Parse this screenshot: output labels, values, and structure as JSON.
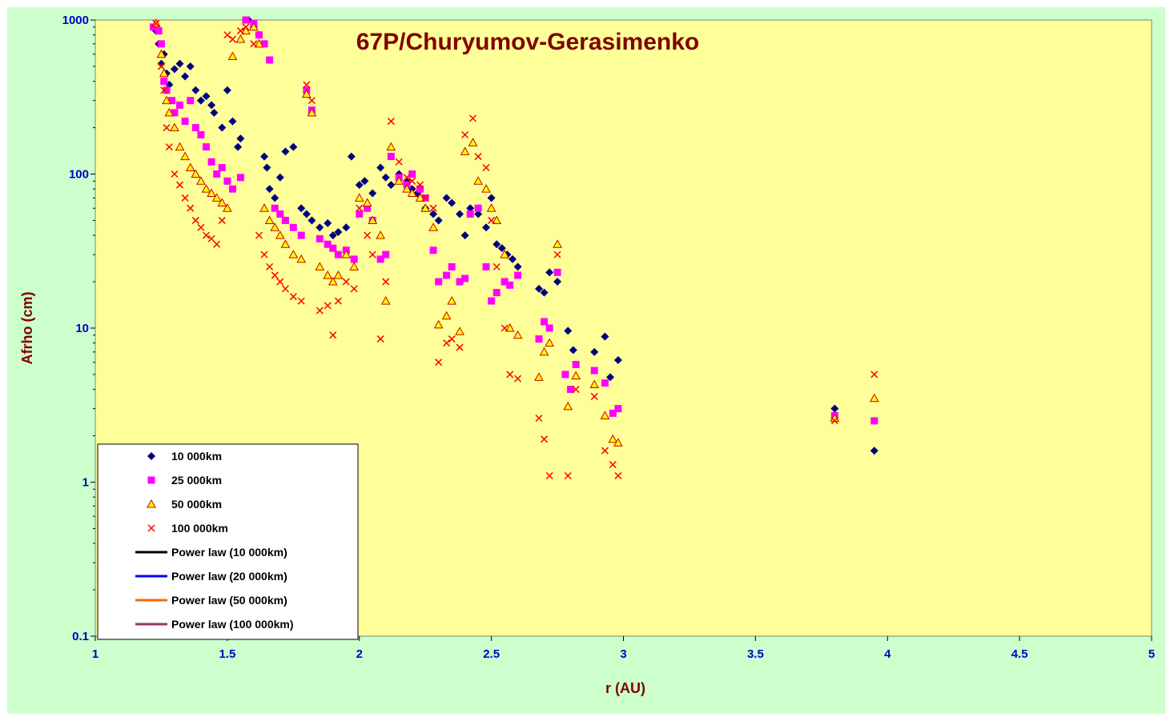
{
  "chart_data": {
    "type": "scatter",
    "title": "67P/Churyumov-Gerasimenko",
    "xlabel": "r (AU)",
    "ylabel": "Afrho (cm)",
    "xlim": [
      1,
      5
    ],
    "ylim": [
      0.1,
      1000
    ],
    "yscale": "log",
    "x_ticks": [
      "1",
      "1.5",
      "2",
      "2.5",
      "3",
      "3.5",
      "4",
      "4.5",
      "5"
    ],
    "y_ticks": [
      "0.1",
      "1",
      "10",
      "100",
      "1000"
    ],
    "grid": false,
    "legend_position": "bottom-left",
    "colors": {
      "plot_background": "#ffff99",
      "chart_background": "#ccffcc",
      "title": "#800000",
      "tick_labels": "#0000cc",
      "axis_labels": "#800000"
    },
    "series": [
      {
        "name": "10 000km",
        "marker": "diamond",
        "color": "#000080",
        "x": [
          1.23,
          1.24,
          1.25,
          1.26,
          1.27,
          1.28,
          1.3,
          1.32,
          1.34,
          1.36,
          1.38,
          1.4,
          1.42,
          1.44,
          1.45,
          1.48,
          1.5,
          1.52,
          1.54,
          1.55,
          1.58,
          1.6,
          1.62,
          1.64,
          1.65,
          1.66,
          1.68,
          1.7,
          1.72,
          1.75,
          1.78,
          1.8,
          1.82,
          1.85,
          1.88,
          1.9,
          1.92,
          1.95,
          1.97,
          2.0,
          2.02,
          2.05,
          2.08,
          2.1,
          2.12,
          2.15,
          2.18,
          2.2,
          2.22,
          2.25,
          2.28,
          2.3,
          2.33,
          2.35,
          2.38,
          2.4,
          2.42,
          2.45,
          2.48,
          2.5,
          2.52,
          2.54,
          2.56,
          2.58,
          2.6,
          2.68,
          2.7,
          2.72,
          2.75,
          2.79,
          2.81,
          2.89,
          2.93,
          2.95,
          2.98,
          3.8,
          3.95
        ],
        "y": [
          850,
          700,
          520,
          600,
          450,
          380,
          480,
          520,
          430,
          500,
          350,
          300,
          320,
          280,
          250,
          200,
          350,
          220,
          150,
          170,
          1000,
          900,
          800,
          130,
          110,
          80,
          70,
          95,
          140,
          150,
          60,
          55,
          50,
          45,
          48,
          40,
          42,
          45,
          130,
          85,
          90,
          75,
          110,
          95,
          85,
          100,
          90,
          80,
          75,
          60,
          55,
          50,
          70,
          65,
          55,
          40,
          60,
          55,
          45,
          70,
          35,
          33,
          30,
          28,
          25,
          18,
          17,
          23,
          20,
          9.6,
          7.2,
          7.0,
          8.8,
          4.8,
          6.2,
          3.0,
          1.6
        ]
      },
      {
        "name": "25 000km",
        "marker": "square",
        "color": "#ff00ff",
        "x": [
          1.22,
          1.24,
          1.25,
          1.26,
          1.27,
          1.29,
          1.3,
          1.32,
          1.34,
          1.36,
          1.38,
          1.4,
          1.42,
          1.44,
          1.46,
          1.48,
          1.5,
          1.52,
          1.55,
          1.57,
          1.6,
          1.62,
          1.64,
          1.66,
          1.68,
          1.7,
          1.72,
          1.75,
          1.78,
          1.8,
          1.82,
          1.85,
          1.88,
          1.9,
          1.92,
          1.95,
          1.98,
          2.0,
          2.03,
          2.05,
          2.08,
          2.1,
          2.12,
          2.15,
          2.18,
          2.2,
          2.23,
          2.25,
          2.28,
          2.3,
          2.33,
          2.35,
          2.38,
          2.4,
          2.42,
          2.45,
          2.48,
          2.5,
          2.52,
          2.55,
          2.57,
          2.6,
          2.68,
          2.7,
          2.72,
          2.75,
          2.78,
          2.8,
          2.82,
          2.89,
          2.93,
          2.96,
          2.98,
          3.8,
          3.95
        ],
        "y": [
          900,
          850,
          700,
          400,
          350,
          300,
          250,
          280,
          220,
          300,
          200,
          180,
          150,
          120,
          100,
          110,
          90,
          80,
          95,
          1000,
          950,
          800,
          700,
          550,
          60,
          55,
          50,
          45,
          40,
          350,
          260,
          38,
          35,
          33,
          30,
          32,
          28,
          55,
          60,
          50,
          28,
          30,
          130,
          95,
          85,
          100,
          80,
          70,
          32,
          20,
          22,
          25,
          20,
          21,
          55,
          60,
          25,
          15,
          17,
          20,
          19,
          22,
          8.5,
          11,
          10,
          23,
          5.0,
          4.0,
          5.8,
          5.3,
          4.4,
          2.8,
          3.0,
          2.7,
          2.5
        ]
      },
      {
        "name": "50 000km",
        "marker": "triangle",
        "color": "#ffff00",
        "stroke": "#cc0000",
        "x": [
          1.23,
          1.25,
          1.26,
          1.27,
          1.28,
          1.3,
          1.32,
          1.34,
          1.36,
          1.38,
          1.4,
          1.42,
          1.44,
          1.46,
          1.48,
          1.5,
          1.52,
          1.55,
          1.57,
          1.6,
          1.62,
          1.64,
          1.66,
          1.68,
          1.7,
          1.72,
          1.75,
          1.78,
          1.8,
          1.82,
          1.85,
          1.88,
          1.9,
          1.92,
          1.95,
          1.98,
          2.0,
          2.03,
          2.05,
          2.08,
          2.1,
          2.12,
          2.15,
          2.18,
          2.2,
          2.23,
          2.25,
          2.28,
          2.3,
          2.33,
          2.35,
          2.38,
          2.4,
          2.43,
          2.45,
          2.48,
          2.5,
          2.52,
          2.55,
          2.57,
          2.6,
          2.68,
          2.7,
          2.72,
          2.75,
          2.79,
          2.82,
          2.89,
          2.93,
          2.96,
          2.98,
          3.8,
          3.95
        ],
        "y": [
          950,
          600,
          450,
          300,
          250,
          200,
          150,
          130,
          110,
          100,
          90,
          80,
          75,
          70,
          65,
          60,
          580,
          750,
          850,
          900,
          700,
          60,
          50,
          45,
          40,
          35,
          30,
          28,
          330,
          250,
          25,
          22,
          20,
          22,
          30,
          25,
          70,
          65,
          50,
          40,
          15,
          150,
          90,
          80,
          75,
          70,
          60,
          45,
          10.5,
          12,
          15,
          9.5,
          140,
          160,
          90,
          80,
          60,
          50,
          30,
          10,
          9,
          4.8,
          7,
          8,
          35,
          3.1,
          4.9,
          4.3,
          2.7,
          1.9,
          1.8,
          2.6,
          3.5
        ]
      },
      {
        "name": "100 000km",
        "marker": "cross",
        "color": "#ff0000",
        "x": [
          1.23,
          1.25,
          1.26,
          1.27,
          1.28,
          1.3,
          1.32,
          1.34,
          1.36,
          1.38,
          1.4,
          1.42,
          1.44,
          1.46,
          1.48,
          1.5,
          1.52,
          1.55,
          1.57,
          1.6,
          1.62,
          1.64,
          1.66,
          1.68,
          1.7,
          1.72,
          1.75,
          1.78,
          1.8,
          1.82,
          1.85,
          1.88,
          1.9,
          1.92,
          1.95,
          1.98,
          2.0,
          2.03,
          2.05,
          2.08,
          2.1,
          2.12,
          2.15,
          2.18,
          2.2,
          2.23,
          2.25,
          2.28,
          2.3,
          2.33,
          2.35,
          2.38,
          2.4,
          2.43,
          2.45,
          2.48,
          2.5,
          2.52,
          2.55,
          2.57,
          2.6,
          2.68,
          2.7,
          2.72,
          2.75,
          2.79,
          2.82,
          2.89,
          2.93,
          2.96,
          2.98,
          3.8,
          3.95
        ],
        "y": [
          950,
          500,
          350,
          200,
          150,
          100,
          85,
          70,
          60,
          50,
          45,
          40,
          38,
          35,
          50,
          800,
          750,
          850,
          900,
          700,
          40,
          30,
          25,
          22,
          20,
          18,
          16,
          15,
          380,
          300,
          13,
          14,
          9,
          15,
          20,
          18,
          60,
          40,
          30,
          8.5,
          20,
          220,
          120,
          95,
          90,
          85,
          70,
          60,
          6,
          8,
          8.5,
          7.5,
          180,
          230,
          130,
          110,
          50,
          25,
          10,
          5,
          4.7,
          2.6,
          1.9,
          1.1,
          30,
          1.1,
          4.0,
          3.6,
          1.6,
          1.3,
          1.1,
          2.5,
          5.0
        ]
      }
    ],
    "power_law_legend": [
      {
        "name": "Power law (10 000km)",
        "color": "#000000"
      },
      {
        "name": "Power law (20 000km)",
        "color": "#0000ff"
      },
      {
        "name": "Power law (50 000km)",
        "color": "#ff6600"
      },
      {
        "name": "Power law (100 000km)",
        "color": "#993366"
      }
    ]
  }
}
